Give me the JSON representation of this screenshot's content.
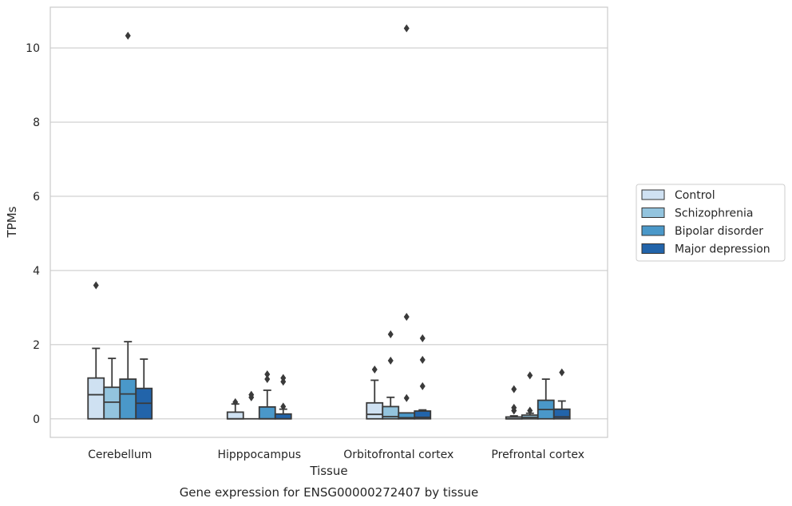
{
  "chart_data": {
    "type": "box",
    "title": "",
    "caption": "Gene expression for ENSG00000272407 by tissue",
    "xlabel": "Tissue",
    "ylabel": "TPMs",
    "ylim": [
      -0.5,
      11.1
    ],
    "yticks": [
      0,
      2,
      4,
      6,
      8,
      10
    ],
    "grid": "horizontal",
    "legend_position": "right",
    "categories": [
      "Cerebellum",
      "Hipppocampus",
      "Orbitofrontal cortex",
      "Prefrontal cortex"
    ],
    "series": [
      {
        "name": "Control",
        "color": "#cfe1f2",
        "boxes": [
          {
            "whisker_low": 0,
            "q1": 0,
            "median": 0.65,
            "q3": 1.1,
            "whisker_high": 1.9,
            "outliers": [
              3.6
            ]
          },
          {
            "whisker_low": 0,
            "q1": 0,
            "median": 0,
            "q3": 0.18,
            "whisker_high": 0.4,
            "outliers": [
              0.45
            ]
          },
          {
            "whisker_low": 0,
            "q1": 0,
            "median": 0.12,
            "q3": 0.43,
            "whisker_high": 1.04,
            "outliers": [
              1.33
            ]
          },
          {
            "whisker_low": 0,
            "q1": 0,
            "median": 0,
            "q3": 0.05,
            "whisker_high": 0.08,
            "outliers": [
              0.22,
              0.3,
              0.8
            ]
          }
        ]
      },
      {
        "name": "Schizophrenia",
        "color": "#93c4de",
        "boxes": [
          {
            "whisker_low": 0,
            "q1": 0,
            "median": 0.45,
            "q3": 0.85,
            "whisker_high": 1.63,
            "outliers": []
          },
          {
            "whisker_low": 0,
            "q1": 0,
            "median": 0,
            "q3": 0,
            "whisker_high": 0,
            "outliers": [
              0.58,
              0.65
            ]
          },
          {
            "whisker_low": 0,
            "q1": 0,
            "median": 0.06,
            "q3": 0.33,
            "whisker_high": 0.58,
            "outliers": [
              1.57,
              2.28
            ]
          },
          {
            "whisker_low": 0,
            "q1": 0,
            "median": 0.04,
            "q3": 0.1,
            "whisker_high": 0.15,
            "outliers": [
              0.22,
              1.17
            ]
          }
        ]
      },
      {
        "name": "Bipolar disorder",
        "color": "#4a98c9",
        "boxes": [
          {
            "whisker_low": 0,
            "q1": 0,
            "median": 0.67,
            "q3": 1.07,
            "whisker_high": 2.08,
            "outliers": [
              10.33
            ]
          },
          {
            "whisker_low": 0,
            "q1": 0,
            "median": 0,
            "q3": 0.32,
            "whisker_high": 0.77,
            "outliers": [
              1.07,
              1.2
            ]
          },
          {
            "whisker_low": 0,
            "q1": 0,
            "median": 0.03,
            "q3": 0.16,
            "whisker_high": 0.16,
            "outliers": [
              0.56,
              2.75,
              10.53
            ]
          },
          {
            "whisker_low": 0,
            "q1": 0,
            "median": 0.25,
            "q3": 0.5,
            "whisker_high": 1.07,
            "outliers": []
          }
        ]
      },
      {
        "name": "Major depression",
        "color": "#2264aa",
        "boxes": [
          {
            "whisker_low": 0,
            "q1": 0,
            "median": 0.42,
            "q3": 0.82,
            "whisker_high": 1.61,
            "outliers": []
          },
          {
            "whisker_low": 0,
            "q1": 0,
            "median": 0,
            "q3": 0.13,
            "whisker_high": 0.26,
            "outliers": [
              0.33,
              1.0,
              1.1
            ]
          },
          {
            "whisker_low": 0,
            "q1": 0,
            "median": 0.04,
            "q3": 0.21,
            "whisker_high": 0.24,
            "outliers": [
              0.88,
              1.59,
              2.17
            ]
          },
          {
            "whisker_low": 0,
            "q1": 0,
            "median": 0.05,
            "q3": 0.26,
            "whisker_high": 0.48,
            "outliers": [
              1.25
            ]
          }
        ]
      }
    ]
  }
}
